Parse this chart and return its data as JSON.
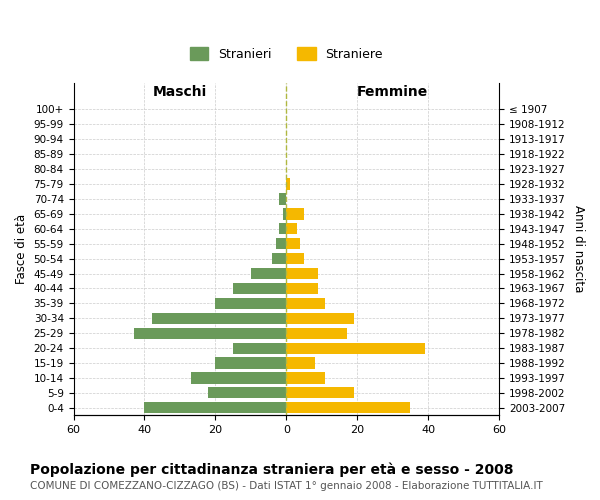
{
  "age_groups": [
    "100+",
    "95-99",
    "90-94",
    "85-89",
    "80-84",
    "75-79",
    "70-74",
    "65-69",
    "60-64",
    "55-59",
    "50-54",
    "45-49",
    "40-44",
    "35-39",
    "30-34",
    "25-29",
    "20-24",
    "15-19",
    "10-14",
    "5-9",
    "0-4"
  ],
  "birth_years": [
    "≤ 1907",
    "1908-1912",
    "1913-1917",
    "1918-1922",
    "1923-1927",
    "1928-1932",
    "1933-1937",
    "1938-1942",
    "1943-1947",
    "1948-1952",
    "1953-1957",
    "1958-1962",
    "1963-1967",
    "1968-1972",
    "1973-1977",
    "1978-1982",
    "1983-1987",
    "1988-1992",
    "1993-1997",
    "1998-2002",
    "2003-2007"
  ],
  "males": [
    0,
    0,
    0,
    0,
    0,
    0,
    2,
    1,
    2,
    3,
    4,
    10,
    15,
    20,
    38,
    43,
    15,
    20,
    27,
    22,
    40
  ],
  "females": [
    0,
    0,
    0,
    0,
    0,
    1,
    0,
    5,
    3,
    4,
    5,
    9,
    9,
    11,
    19,
    17,
    39,
    8,
    11,
    19,
    35
  ],
  "male_color": "#6a9a5a",
  "female_color": "#f5b800",
  "center_line_color": "#b0b840",
  "grid_color": "#cccccc",
  "background_color": "#ffffff",
  "title": "Popolazione per cittadinanza straniera per età e sesso - 2008",
  "subtitle": "COMUNE DI COMEZZANO-CIZZAGO (BS) - Dati ISTAT 1° gennaio 2008 - Elaborazione TUTTITALIA.IT",
  "xlabel_left": "Maschi",
  "xlabel_right": "Femmine",
  "ylabel_left": "Fasce di età",
  "ylabel_right": "Anni di nascita",
  "legend_males": "Stranieri",
  "legend_females": "Straniere",
  "xlim": 60,
  "title_fontsize": 10,
  "subtitle_fontsize": 7.5
}
